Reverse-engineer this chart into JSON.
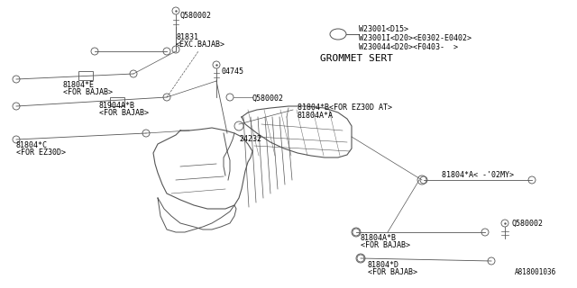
{
  "background_color": "#ffffff",
  "line_color": "#555555",
  "text_color": "#000000",
  "diagram_id": "A818001036",
  "grommet_label": "GROMMET SERT",
  "w_labels": [
    "W23001<D15>",
    "W23001I<D20><E0302-E0402>",
    "W230044<D20><F0403-  >"
  ],
  "font_size": 6.0
}
